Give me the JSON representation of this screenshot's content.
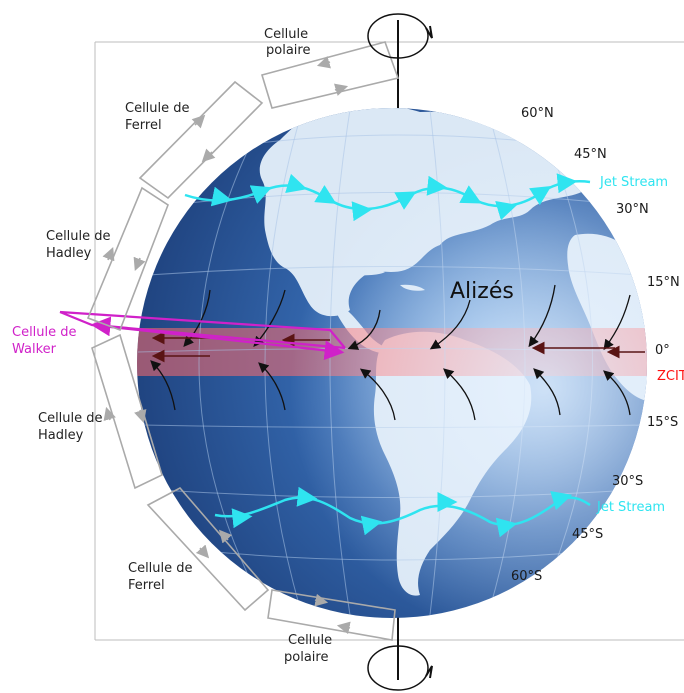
{
  "labels": {
    "polar_top": [
      "Cellule",
      "polaire"
    ],
    "ferrel_top": [
      "Cellule de",
      "Ferrel"
    ],
    "hadley_north": [
      "Cellule de",
      "Hadley"
    ],
    "walker": [
      "Cellule de",
      "Walker"
    ],
    "hadley_south": [
      "Cellule de",
      "Hadley"
    ],
    "ferrel_bottom": [
      "Cellule de",
      "Ferrel"
    ],
    "polar_bottom": [
      "Cellule",
      "polaire"
    ],
    "alizes": "Alizés",
    "zcit": "ZCIT",
    "jet_stream_north": "Jet Stream",
    "jet_stream_south": "Jet Stream"
  },
  "latitudes": [
    "60°N",
    "45°N",
    "30°N",
    "15°N",
    "0°",
    "15°S",
    "30°S",
    "45°S",
    "60°S"
  ],
  "colors": {
    "ocean": "#2d62a8",
    "land": "#dbe8f5",
    "jet_stream": "#2fe4f0",
    "walker": "#d021c9",
    "zcit_band": "#ff6b6b",
    "cells": "#aaaaaa"
  }
}
